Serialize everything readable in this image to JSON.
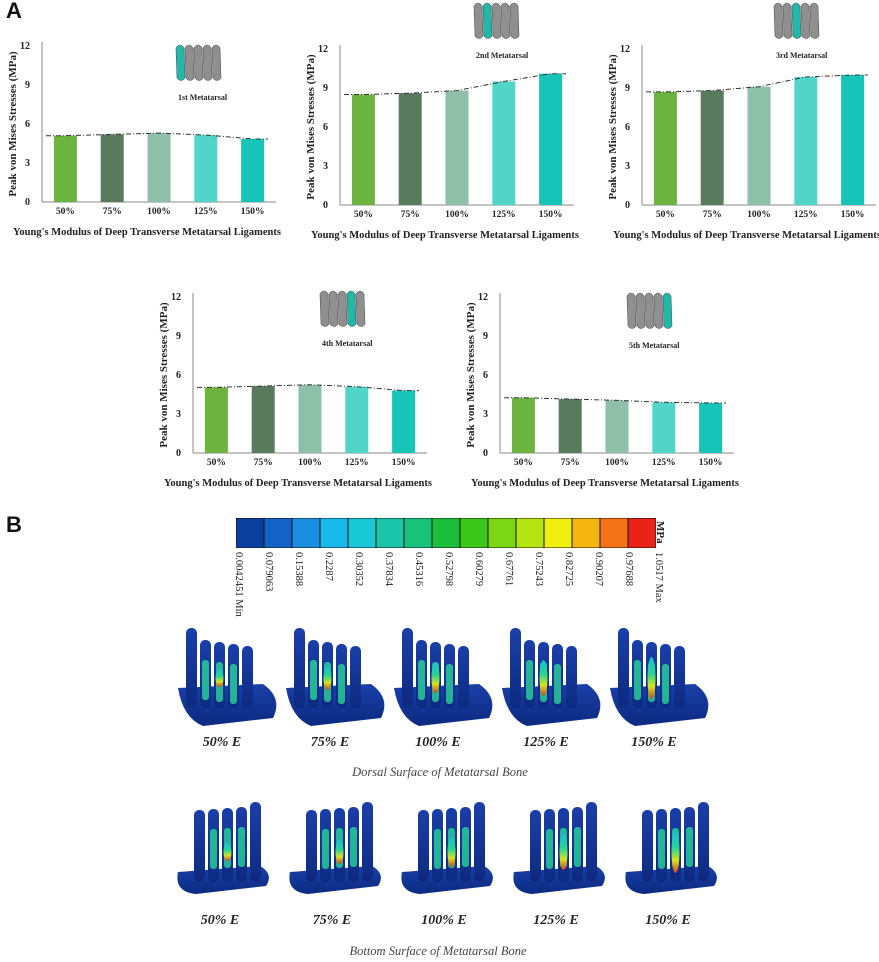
{
  "panels": {
    "a": "A",
    "b": "B"
  },
  "chart_data": [
    {
      "type": "bar",
      "title": "",
      "subtitle_label": "1st Metatarsal",
      "categories": [
        "50%",
        "75%",
        "100%",
        "125%",
        "150%"
      ],
      "values": [
        5.1,
        5.2,
        5.3,
        5.15,
        4.85
      ],
      "ylabel": "Peak von Mises Stresses (MPa)",
      "xlabel": "Young's Modulus of Deep Transverse Metatarsal Ligaments",
      "ylim": [
        0,
        12
      ],
      "yticks": [
        0,
        3,
        6,
        9,
        12
      ],
      "colors": [
        "#6db33f",
        "#5a7a5e",
        "#8ebfa9",
        "#50d5c8",
        "#17c5b8"
      ],
      "highlight": 1
    },
    {
      "type": "bar",
      "title": "",
      "subtitle_label": "2nd Metatarsal",
      "categories": [
        "50%",
        "75%",
        "100%",
        "125%",
        "150%"
      ],
      "values": [
        8.5,
        8.6,
        8.8,
        9.5,
        10.1
      ],
      "ylabel": "Peak von Mises Stresses (MPa)",
      "xlabel": "Young's Modulus of Deep Transverse Metatarsal Ligaments",
      "ylim": [
        0,
        12
      ],
      "yticks": [
        0,
        3,
        6,
        9,
        12
      ],
      "colors": [
        "#6db33f",
        "#5a7a5e",
        "#8ebfa9",
        "#50d5c8",
        "#17c5b8"
      ],
      "highlight": 2
    },
    {
      "type": "bar",
      "title": "",
      "subtitle_label": "3rd Metatarsal",
      "categories": [
        "50%",
        "75%",
        "100%",
        "125%",
        "150%"
      ],
      "values": [
        8.7,
        8.8,
        9.1,
        9.85,
        10.0
      ],
      "ylabel": "Peak von Mises Stresses (MPa)",
      "xlabel": "Young's Modulus of Deep Transverse Metatarsal Ligaments",
      "ylim": [
        0,
        12
      ],
      "yticks": [
        0,
        3,
        6,
        9,
        12
      ],
      "colors": [
        "#6db33f",
        "#5a7a5e",
        "#8ebfa9",
        "#50d5c8",
        "#17c5b8"
      ],
      "highlight": 3
    },
    {
      "type": "bar",
      "title": "",
      "subtitle_label": "4th Metatarsal",
      "categories": [
        "50%",
        "75%",
        "100%",
        "125%",
        "150%"
      ],
      "values": [
        5.05,
        5.15,
        5.25,
        5.1,
        4.8
      ],
      "ylabel": "Peak von Mises Stresses (MPa)",
      "xlabel": "Young's Modulus of Deep Transverse Metatarsal Ligaments",
      "ylim": [
        0,
        12
      ],
      "yticks": [
        0,
        3,
        6,
        9,
        12
      ],
      "colors": [
        "#6db33f",
        "#5a7a5e",
        "#8ebfa9",
        "#50d5c8",
        "#17c5b8"
      ],
      "highlight": 4
    },
    {
      "type": "bar",
      "title": "",
      "subtitle_label": "5th Metatarsal",
      "categories": [
        "50%",
        "75%",
        "100%",
        "125%",
        "150%"
      ],
      "values": [
        4.25,
        4.15,
        4.05,
        3.9,
        3.85
      ],
      "ylabel": "Peak von Mises Stresses (MPa)",
      "xlabel": "Young's Modulus of Deep Transverse Metatarsal Ligaments",
      "ylim": [
        0,
        12
      ],
      "yticks": [
        0,
        3,
        6,
        9,
        12
      ],
      "colors": [
        "#6db33f",
        "#5a7a5e",
        "#8ebfa9",
        "#50d5c8",
        "#17c5b8"
      ],
      "highlight": 5
    }
  ],
  "colorbar": {
    "unit": "MPa",
    "ticks": [
      "0.0042451 Min",
      "0.079063",
      "0.15388",
      "0.2287",
      "0.30352",
      "0.37834",
      "0.45316",
      "0.52798",
      "0.60279",
      "0.67761",
      "0.75243",
      "0.82725",
      "0.90207",
      "0.97688",
      "1.0517 Max"
    ],
    "colors": [
      "#0b3f9e",
      "#1363c6",
      "#1a8ee0",
      "#18b9ec",
      "#17c9d7",
      "#1ac5aa",
      "#18c27a",
      "#1dbd3c",
      "#3cc81a",
      "#7dd612",
      "#b6e411",
      "#f1ee10",
      "#f7b512",
      "#f47315",
      "#ea2318"
    ]
  },
  "dorsal": {
    "labels": [
      "50% E",
      "75% E",
      "100% E",
      "125% E",
      "150% E"
    ],
    "caption": "Dorsal Surface of Metatarsal Bone"
  },
  "bottom": {
    "labels": [
      "50% E",
      "75% E",
      "100% E",
      "125% E",
      "150% E"
    ],
    "caption": "Bottom Surface of Metatarsal Bone"
  }
}
